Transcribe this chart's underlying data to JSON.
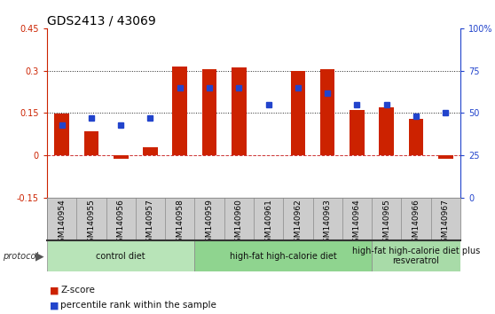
{
  "title": "GDS2413 / 43069",
  "samples": [
    "GSM140954",
    "GSM140955",
    "GSM140956",
    "GSM140957",
    "GSM140958",
    "GSM140959",
    "GSM140960",
    "GSM140961",
    "GSM140962",
    "GSM140963",
    "GSM140964",
    "GSM140965",
    "GSM140966",
    "GSM140967"
  ],
  "zscore": [
    0.148,
    0.085,
    -0.012,
    0.03,
    0.315,
    0.305,
    0.31,
    0.0,
    0.3,
    0.305,
    0.16,
    0.17,
    0.13,
    -0.012
  ],
  "percentile": [
    43,
    47,
    43,
    47,
    65,
    65,
    65,
    55,
    65,
    62,
    55,
    55,
    48,
    50
  ],
  "left_ylim": [
    -0.15,
    0.45
  ],
  "right_ylim": [
    0,
    100
  ],
  "left_yticks": [
    -0.15,
    0,
    0.15,
    0.3,
    0.45
  ],
  "right_yticks": [
    0,
    25,
    50,
    75,
    100
  ],
  "left_yticklabels": [
    "-0.15",
    "0",
    "0.15",
    "0.3",
    "0.45"
  ],
  "right_yticklabels": [
    "0",
    "25",
    "50",
    "75",
    "100%"
  ],
  "hlines": [
    0.15,
    0.3
  ],
  "groups": [
    {
      "label": "control diet",
      "start": 0,
      "end": 5,
      "color": "#b8e4b8"
    },
    {
      "label": "high-fat high-calorie diet",
      "start": 5,
      "end": 11,
      "color": "#8fd48f"
    },
    {
      "label": "high-fat high-calorie diet plus\nresveratrol",
      "start": 11,
      "end": 14,
      "color": "#a8dba8"
    }
  ],
  "bar_color": "#cc2200",
  "dot_color": "#2244cc",
  "zero_line_color": "#cc3333",
  "hline_color": "#222222",
  "background_color": "#ffffff",
  "title_fontsize": 10,
  "tick_fontsize": 7,
  "sample_fontsize": 6.5,
  "group_fontsize": 7,
  "legend_fontsize": 7.5,
  "bar_width": 0.5
}
